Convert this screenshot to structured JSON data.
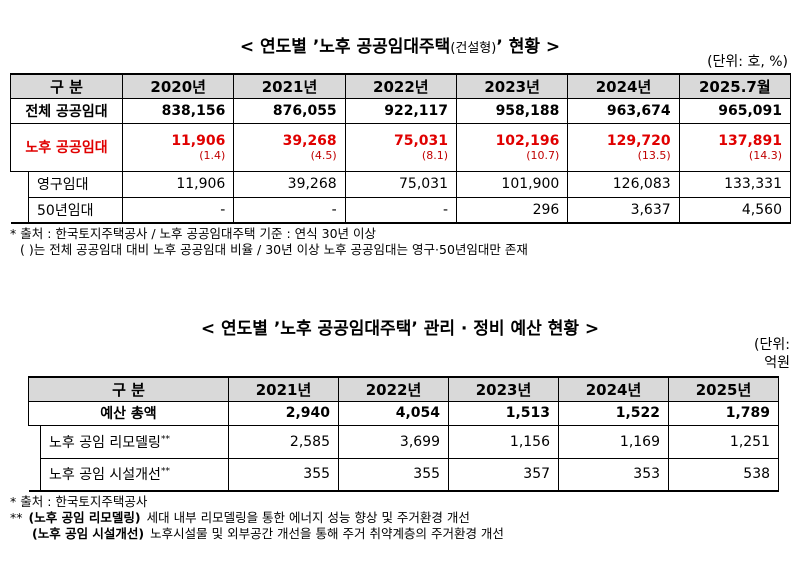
{
  "table1": {
    "title": [
      "< 연도별 ’노후 공공임대주택",
      "(건설형)",
      "’ 현황 >"
    ],
    "unit": "(단위: 호, %)",
    "header": [
      "구 분",
      "2020년",
      "2021년",
      "2022년",
      "2023년",
      "2024년",
      "2025.7월"
    ],
    "rows": [
      {
        "label": "전체 공공임대",
        "values": [
          "838,156",
          "876,055",
          "922,117",
          "958,188",
          "963,674",
          "965,091"
        ]
      },
      {
        "label": "노후 공공임대",
        "values": [
          "11,906",
          "39,268",
          "75,031",
          "102,196",
          "129,720",
          "137,891"
        ],
        "ratios": [
          "(1.4)",
          "(4.5)",
          "(8.1)",
          "(10.7)",
          "(13.5)",
          "(14.3)"
        ]
      },
      {
        "label": "영구임대",
        "values": [
          "11,906",
          "39,268",
          "75,031",
          "101,900",
          "126,083",
          "133,331"
        ]
      },
      {
        "label": "50년임대",
        "values": [
          "-",
          "-",
          "-",
          "296",
          "3,637",
          "4,560"
        ]
      }
    ]
  },
  "notes1": [
    "* 출처 : 한국토지주택공사 / 노후 공공임대주택 기준 : 연식 30년 이상",
    "( )는 전체 공공임대 대비 노후 공공임대 비율 / 30년 이상 노후 공공임대는 영구·50년임대만 존재"
  ],
  "table2": {
    "title": "< 연도별 ’노후 공공임대주택’ 관리 · 정비 예산 현황 >",
    "unit": [
      "(단위:",
      "억원"
    ],
    "header": [
      "구 분",
      "2021년",
      "2022년",
      "2023년",
      "2024년",
      "2025년"
    ],
    "rows": [
      {
        "label": "예산 총액",
        "values": [
          "2,940",
          "4,054",
          "1,513",
          "1,522",
          "1,789"
        ]
      },
      {
        "label": "노후 공임 리모델링",
        "mark": "**",
        "values": [
          "2,585",
          "3,699",
          "1,156",
          "1,169",
          "1,251"
        ]
      },
      {
        "label": "노후 공임 시설개선",
        "mark": "**",
        "values": [
          "355",
          "355",
          "357",
          "353",
          "538"
        ]
      }
    ]
  },
  "notes2": [
    {
      "text": "* 출처 : 한국토지주택공사"
    },
    {
      "mark": "**",
      "bold": "(노후 공임 리모델링)",
      "text": "세대 내부 리모델링을 통한 에너지 성능 향상 및 주거환경 개선"
    },
    {
      "bold": "(노후 공임 시설개선)",
      "text": "노후시설물 및 외부공간 개선을 통해 주거 취약계층의 주거환경 개선"
    }
  ]
}
